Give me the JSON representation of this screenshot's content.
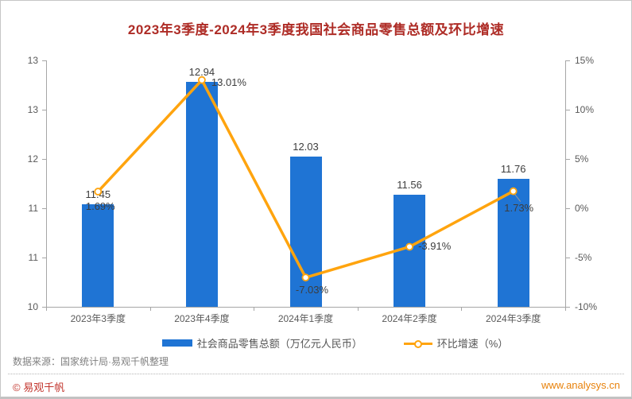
{
  "title": "2023年3季度-2024年3季度我国社会商品零售总额及环比增速",
  "chart_data": {
    "type": "combo-bar-line",
    "categories": [
      "2023年3季度",
      "2023年4季度",
      "2024年1季度",
      "2024年2季度",
      "2024年3季度"
    ],
    "series": [
      {
        "name": "社会商品零售总额（万亿元人民币）",
        "type": "bar",
        "axis": "left",
        "values": [
          11.45,
          12.94,
          12.03,
          11.56,
          11.76
        ],
        "labels": [
          "11.45",
          "12.94",
          "12.03",
          "11.56",
          "11.76"
        ]
      },
      {
        "name": "环比增速（%）",
        "type": "line",
        "axis": "right",
        "values": [
          1.69,
          13.01,
          -7.03,
          -3.91,
          1.73
        ],
        "labels": [
          "1.69%",
          "13.01%",
          "-7.03%",
          "-3.91%",
          "1.73%"
        ]
      }
    ],
    "left_axis": {
      "tick_labels_top_down": [
        "13",
        "13",
        "12",
        "11",
        "11",
        "10"
      ],
      "plot_range": [
        10.2,
        13.2
      ]
    },
    "right_axis": {
      "tick_labels_top_down": [
        "15%",
        "10%",
        "5%",
        "0%",
        "-5%",
        "-10%"
      ],
      "plot_range": [
        -10,
        15
      ]
    },
    "grid": false,
    "legend_position": "bottom"
  },
  "legend": {
    "items": [
      {
        "label": "社会商品零售总额（万亿元人民币）",
        "swatch": "bar"
      },
      {
        "label": "环比增速（%）",
        "swatch": "line-marker"
      }
    ]
  },
  "footer": {
    "source": "数据来源：国家统计局·易观千帆整理",
    "copyright": "© 易观千帆",
    "website": "www.analysys.cn"
  },
  "colors": {
    "bar": "#1f74d4",
    "line": "#ffa40e",
    "title_text": "#ae2c26",
    "axis_text": "#595959",
    "data_label_text": "#3d3d3d",
    "source_text": "#7f7f7f",
    "copyright_text": "#c2342c",
    "website_text": "#e8820c",
    "axis_line": "#a6a6a6"
  }
}
